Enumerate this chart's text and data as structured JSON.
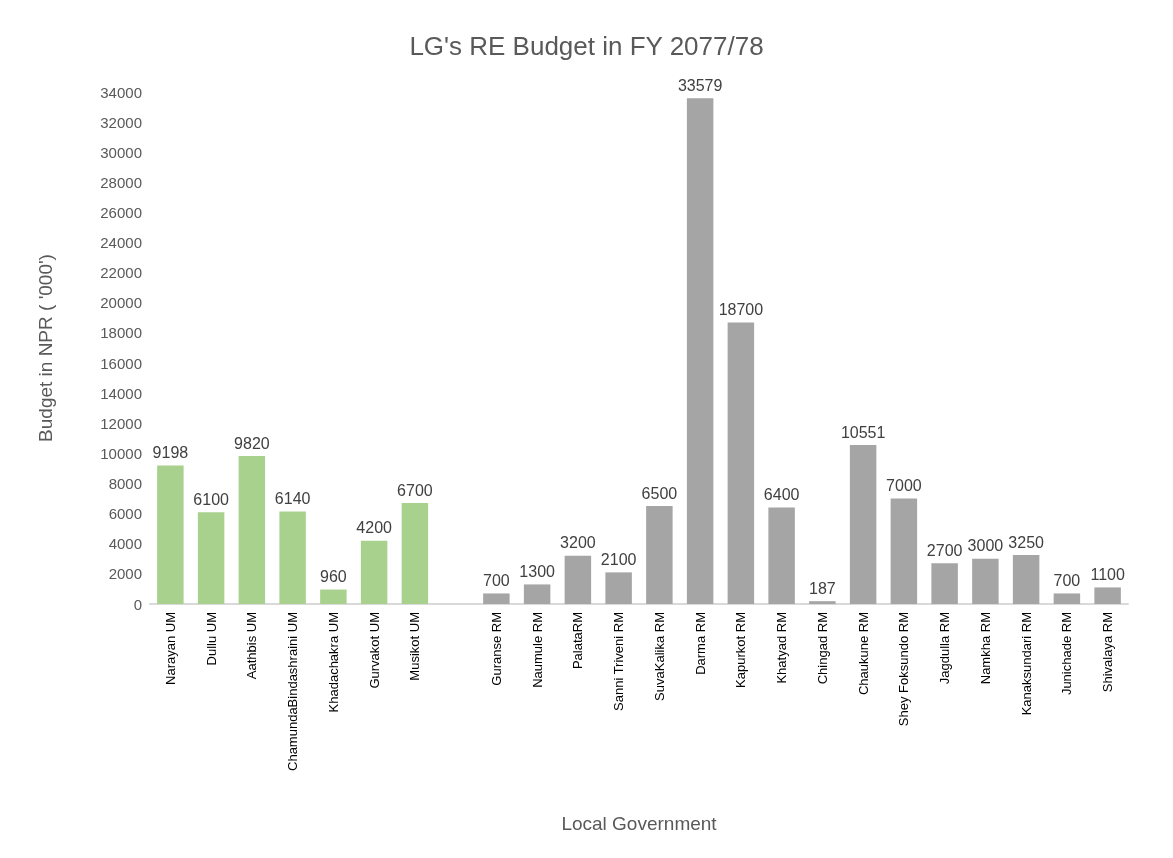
{
  "chart_data": {
    "type": "bar",
    "title": "LG's RE Budget in FY 2077/78",
    "xlabel": "Local Government",
    "ylabel": "Budget in NPR ( '000')",
    "categories": [
      "Narayan UM",
      "Dullu UM",
      "Aathbis UM",
      "ChamundaBindashraini UM",
      "Khadachakra UM",
      "Gurvakot UM",
      "Musikot UM",
      null,
      "Guranse RM",
      "Naumule RM",
      "PalataRM",
      "Sanni Triveni RM",
      "SuvaKalika RM",
      "Darma RM",
      "Kapurkot RM",
      "Khatyad RM",
      "Chingad RM",
      "Chaukune RM",
      "Shey Foksundo RM",
      "Jagdulla RM",
      "Namkha RM",
      "Kanaksundari RM",
      "Junichade RM",
      "Shivalaya RM"
    ],
    "values": [
      9198,
      6100,
      9820,
      6140,
      960,
      4200,
      6700,
      null,
      700,
      1300,
      3200,
      2100,
      6500,
      33579,
      18700,
      6400,
      187,
      10551,
      7000,
      2700,
      3000,
      3250,
      700,
      1100
    ],
    "colors": [
      "#a9d18e",
      "#a9d18e",
      "#a9d18e",
      "#a9d18e",
      "#a9d18e",
      "#a9d18e",
      "#a9d18e",
      null,
      "#a5a5a5",
      "#a5a5a5",
      "#a5a5a5",
      "#a5a5a5",
      "#a5a5a5",
      "#a5a5a5",
      "#a5a5a5",
      "#a5a5a5",
      "#a5a5a5",
      "#a5a5a5",
      "#a5a5a5",
      "#a5a5a5",
      "#a5a5a5",
      "#a5a5a5",
      "#a5a5a5",
      "#a5a5a5"
    ],
    "ylim": [
      0,
      34000
    ],
    "yticks": [
      0,
      2000,
      4000,
      6000,
      8000,
      10000,
      12000,
      14000,
      16000,
      18000,
      20000,
      22000,
      24000,
      26000,
      28000,
      30000,
      32000,
      34000
    ],
    "data_labels": true,
    "grid": false
  }
}
